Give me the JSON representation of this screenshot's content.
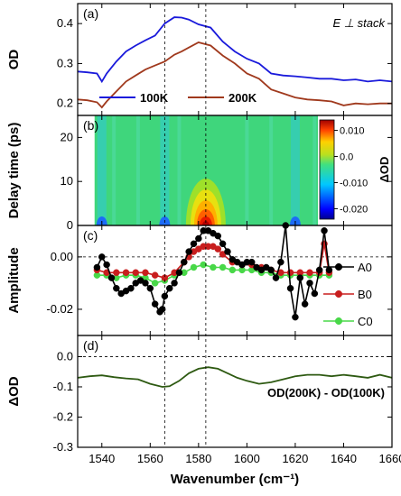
{
  "chart_data": [
    {
      "panel": "(a)",
      "type": "line",
      "ylabel": "OD",
      "ylim": [
        0.17,
        0.45
      ],
      "yticks": [
        "0.2",
        "0.3",
        "0.4"
      ],
      "annotation": "E ⊥ stack",
      "legend_position": "bottom-center",
      "series": [
        {
          "name": "100K",
          "color": "#1a1adb",
          "x": [
            1530,
            1534,
            1538,
            1540,
            1542,
            1546,
            1550,
            1554,
            1558,
            1562,
            1566,
            1570,
            1573,
            1576,
            1580,
            1585,
            1590,
            1595,
            1600,
            1605,
            1610,
            1615,
            1620,
            1625,
            1630,
            1635,
            1640,
            1645,
            1650,
            1655,
            1660
          ],
          "y": [
            0.28,
            0.278,
            0.275,
            0.255,
            0.275,
            0.305,
            0.33,
            0.345,
            0.358,
            0.37,
            0.4,
            0.416,
            0.415,
            0.41,
            0.398,
            0.39,
            0.355,
            0.33,
            0.312,
            0.3,
            0.275,
            0.27,
            0.268,
            0.265,
            0.262,
            0.262,
            0.258,
            0.26,
            0.255,
            0.258,
            0.255
          ]
        },
        {
          "name": "200K",
          "color": "#a0391d",
          "x": [
            1530,
            1534,
            1538,
            1540,
            1542,
            1546,
            1550,
            1554,
            1558,
            1562,
            1566,
            1570,
            1573,
            1576,
            1580,
            1585,
            1590,
            1595,
            1600,
            1605,
            1610,
            1615,
            1620,
            1625,
            1630,
            1635,
            1640,
            1645,
            1650,
            1655,
            1660
          ],
          "y": [
            0.21,
            0.208,
            0.203,
            0.19,
            0.205,
            0.23,
            0.255,
            0.27,
            0.285,
            0.295,
            0.305,
            0.322,
            0.33,
            0.34,
            0.353,
            0.345,
            0.32,
            0.3,
            0.275,
            0.262,
            0.235,
            0.225,
            0.215,
            0.21,
            0.208,
            0.205,
            0.195,
            0.2,
            0.198,
            0.2,
            0.2
          ]
        }
      ]
    },
    {
      "panel": "(b)",
      "type": "heatmap",
      "ylabel": "Delay time (ps)",
      "ylim": [
        0,
        25
      ],
      "yticks": [
        "0",
        "10",
        "20"
      ],
      "xrange": [
        1537,
        1635
      ],
      "colorbar_label": "ΔOD",
      "colorbar_ticks": [
        "0.010",
        "0.0",
        "-0.010",
        "-0.020"
      ],
      "colorbar_tick_values": [
        0.01,
        0.0,
        -0.01,
        -0.02
      ],
      "colorbar_range": [
        -0.024,
        0.014
      ],
      "features": [
        {
          "x": 1583,
          "t_peak": 0,
          "sign": "positive",
          "max": 0.013
        },
        {
          "x": 1566,
          "t_peak": 0,
          "sign": "negative",
          "min": -0.01
        },
        {
          "x": 1540,
          "t_peak": 0,
          "sign": "negative",
          "min": -0.008
        },
        {
          "x": 1620,
          "t_peak": 0,
          "sign": "negative",
          "min": -0.008
        }
      ]
    },
    {
      "panel": "(c)",
      "type": "line",
      "ylabel": "Amplitude",
      "ylim": [
        -0.03,
        0.012
      ],
      "yticks": [
        "0.00",
        "-0.02"
      ],
      "legend_position": "right",
      "series": [
        {
          "name": "A0",
          "color": "#000000",
          "x": [
            1538,
            1540,
            1542,
            1544,
            1546,
            1548,
            1550,
            1552,
            1554,
            1556,
            1558,
            1560,
            1562,
            1564,
            1565,
            1566,
            1568,
            1570,
            1572,
            1574,
            1576,
            1578,
            1580,
            1582,
            1584,
            1586,
            1588,
            1590,
            1592,
            1594,
            1596,
            1598,
            1600,
            1602,
            1604,
            1606,
            1608,
            1610,
            1612,
            1614,
            1616,
            1618,
            1620,
            1622,
            1624,
            1626,
            1628,
            1630,
            1632,
            1634
          ],
          "y": [
            -0.004,
            0.0,
            -0.003,
            -0.008,
            -0.012,
            -0.014,
            -0.013,
            -0.012,
            -0.01,
            -0.009,
            -0.01,
            -0.012,
            -0.018,
            -0.021,
            -0.02,
            -0.015,
            -0.012,
            -0.01,
            -0.006,
            -0.002,
            0.002,
            0.005,
            0.007,
            0.01,
            0.01,
            0.009,
            0.008,
            0.005,
            0.002,
            -0.001,
            -0.002,
            -0.003,
            -0.002,
            -0.002,
            -0.004,
            -0.005,
            -0.004,
            -0.005,
            -0.008,
            -0.002,
            0.012,
            -0.012,
            -0.023,
            -0.008,
            -0.018,
            -0.01,
            -0.014,
            -0.005,
            0.01,
            -0.005
          ]
        },
        {
          "name": "B0",
          "color": "#c81e1e",
          "x": [
            1538,
            1542,
            1546,
            1550,
            1554,
            1558,
            1562,
            1566,
            1570,
            1574,
            1576,
            1578,
            1580,
            1582,
            1584,
            1586,
            1588,
            1590,
            1594,
            1598,
            1602,
            1606,
            1610,
            1614,
            1618,
            1622,
            1626,
            1630,
            1632,
            1634
          ],
          "y": [
            -0.005,
            -0.006,
            -0.006,
            -0.006,
            -0.006,
            -0.006,
            -0.007,
            -0.008,
            -0.006,
            -0.002,
            0.0,
            0.002,
            0.003,
            0.004,
            0.004,
            0.004,
            0.003,
            0.001,
            -0.002,
            -0.003,
            -0.003,
            -0.004,
            -0.005,
            -0.006,
            -0.006,
            -0.006,
            -0.006,
            -0.006,
            0.005,
            -0.006
          ]
        },
        {
          "name": "C0",
          "color": "#48d848",
          "x": [
            1538,
            1542,
            1546,
            1550,
            1554,
            1558,
            1562,
            1566,
            1570,
            1574,
            1578,
            1582,
            1586,
            1590,
            1594,
            1598,
            1602,
            1606,
            1610,
            1614,
            1618,
            1622,
            1626,
            1630,
            1634
          ],
          "y": [
            -0.007,
            -0.007,
            -0.008,
            -0.007,
            -0.007,
            -0.008,
            -0.01,
            -0.009,
            -0.007,
            -0.006,
            -0.004,
            -0.003,
            -0.004,
            -0.004,
            -0.005,
            -0.005,
            -0.005,
            -0.006,
            -0.006,
            -0.007,
            -0.007,
            -0.007,
            -0.007,
            -0.007,
            -0.007
          ]
        }
      ]
    },
    {
      "panel": "(d)",
      "type": "line",
      "ylabel": "ΔOD",
      "xlabel": "Wavenumber (cm⁻¹)",
      "ylim": [
        -0.3,
        0.07
      ],
      "yticks": [
        "0.0",
        "-0.1",
        "-0.2",
        "-0.3"
      ],
      "xlim": [
        1530,
        1660
      ],
      "xticks": [
        "1540",
        "1560",
        "1580",
        "1600",
        "1620",
        "1640",
        "1660"
      ],
      "annotation": "OD(200K) - OD(100K)",
      "series": [
        {
          "name": "",
          "color": "#2e5a12",
          "x": [
            1530,
            1535,
            1540,
            1545,
            1550,
            1555,
            1560,
            1565,
            1568,
            1572,
            1576,
            1580,
            1584,
            1588,
            1592,
            1596,
            1600,
            1605,
            1610,
            1615,
            1620,
            1625,
            1630,
            1635,
            1640,
            1645,
            1650,
            1655,
            1660
          ],
          "y": [
            -0.07,
            -0.065,
            -0.062,
            -0.068,
            -0.072,
            -0.075,
            -0.09,
            -0.1,
            -0.098,
            -0.08,
            -0.055,
            -0.04,
            -0.035,
            -0.04,
            -0.055,
            -0.07,
            -0.08,
            -0.09,
            -0.085,
            -0.075,
            -0.065,
            -0.06,
            -0.06,
            -0.065,
            -0.06,
            -0.065,
            -0.07,
            -0.06,
            -0.07
          ]
        }
      ]
    }
  ],
  "shared": {
    "vlines_x": [
      1566,
      1583
    ],
    "xlim": [
      1530,
      1660
    ]
  }
}
